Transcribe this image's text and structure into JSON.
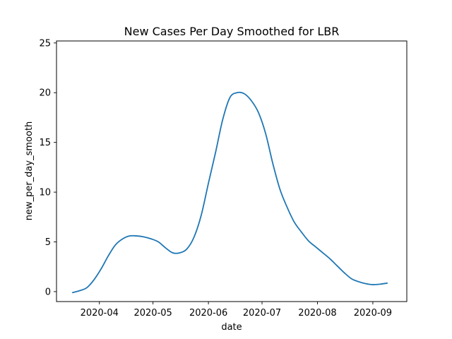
{
  "chart_data": {
    "type": "line",
    "title": "New Cases Per Day Smoothed for LBR",
    "xlabel": "date",
    "ylabel": "new_per_day_smooth",
    "xlim": [
      "2020-03-08",
      "2020-09-20"
    ],
    "ylim": [
      -1,
      25.2
    ],
    "x_ticks": [
      {
        "date": "2020-04-01",
        "label": "2020-04"
      },
      {
        "date": "2020-05-01",
        "label": "2020-05"
      },
      {
        "date": "2020-06-01",
        "label": "2020-06"
      },
      {
        "date": "2020-07-01",
        "label": "2020-07"
      },
      {
        "date": "2020-08-01",
        "label": "2020-08"
      },
      {
        "date": "2020-09-01",
        "label": "2020-09"
      }
    ],
    "y_ticks": [
      0,
      5,
      10,
      15,
      20,
      25
    ],
    "grid": false,
    "line_color": "#1f77b4",
    "series": [
      {
        "x": [
          "2020-03-17",
          "2020-03-21",
          "2020-03-25",
          "2020-03-29",
          "2020-04-02",
          "2020-04-06",
          "2020-04-10",
          "2020-04-14",
          "2020-04-18",
          "2020-04-22",
          "2020-04-26",
          "2020-04-30",
          "2020-05-04",
          "2020-05-08",
          "2020-05-12",
          "2020-05-16",
          "2020-05-20",
          "2020-05-24",
          "2020-05-28",
          "2020-06-01",
          "2020-06-05",
          "2020-06-09",
          "2020-06-13",
          "2020-06-17",
          "2020-06-21",
          "2020-06-25",
          "2020-06-29",
          "2020-07-03",
          "2020-07-07",
          "2020-07-11",
          "2020-07-15",
          "2020-07-19",
          "2020-07-23",
          "2020-07-27",
          "2020-07-31",
          "2020-08-04",
          "2020-08-08",
          "2020-08-12",
          "2020-08-16",
          "2020-08-20",
          "2020-08-24",
          "2020-08-28",
          "2020-09-01",
          "2020-09-05",
          "2020-09-09"
        ],
        "y": [
          -0.1,
          0.1,
          0.4,
          1.2,
          2.3,
          3.6,
          4.7,
          5.3,
          5.6,
          5.6,
          5.5,
          5.3,
          5.0,
          4.4,
          3.9,
          3.9,
          4.3,
          5.5,
          7.7,
          10.9,
          14.0,
          17.3,
          19.5,
          20.0,
          19.9,
          19.2,
          18.0,
          15.9,
          12.9,
          10.3,
          8.5,
          7.0,
          6.0,
          5.1,
          4.5,
          3.9,
          3.3,
          2.6,
          1.9,
          1.3,
          1.0,
          0.8,
          0.7,
          0.75,
          0.85
        ]
      }
    ]
  }
}
